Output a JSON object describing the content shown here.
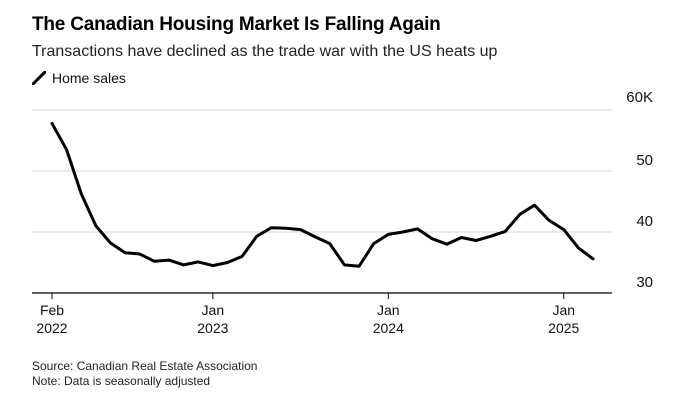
{
  "title": "The Canadian Housing Market Is Falling Again",
  "subtitle": "Transactions have declined as the trade war with the US heats up",
  "legend": {
    "label": "Home sales",
    "color": "#000000"
  },
  "source": "Source: Canadian Real Estate Association",
  "note": "Note: Data is seasonally adjusted",
  "chart_data": {
    "type": "line",
    "title": "The Canadian Housing Market Is Falling Again",
    "subtitle": "Transactions have declined as the trade war with the US heats up",
    "xlabel": "",
    "ylabel": "",
    "ylim": [
      30,
      60
    ],
    "grid": true,
    "legend": "top-left",
    "y_ticks": [
      {
        "value": 60,
        "label": "60K"
      },
      {
        "value": 50,
        "label": "50"
      },
      {
        "value": 40,
        "label": "40"
      },
      {
        "value": 30,
        "label": "30"
      }
    ],
    "x_ticks": [
      {
        "date": "2022-02",
        "line1": "Feb",
        "line2": "2022"
      },
      {
        "date": "2023-01",
        "line1": "Jan",
        "line2": "2023"
      },
      {
        "date": "2024-01",
        "line1": "Jan",
        "line2": "2024"
      },
      {
        "date": "2025-01",
        "line1": "Jan",
        "line2": "2025"
      }
    ],
    "x_range": [
      "2022-02",
      "2025-03"
    ],
    "series": [
      {
        "name": "Home sales",
        "color": "#000000",
        "x": [
          "2022-02",
          "2022-03",
          "2022-04",
          "2022-05",
          "2022-06",
          "2022-07",
          "2022-08",
          "2022-09",
          "2022-10",
          "2022-11",
          "2022-12",
          "2023-01",
          "2023-02",
          "2023-03",
          "2023-04",
          "2023-05",
          "2023-06",
          "2023-07",
          "2023-08",
          "2023-09",
          "2023-10",
          "2023-11",
          "2023-12",
          "2024-01",
          "2024-02",
          "2024-03",
          "2024-04",
          "2024-05",
          "2024-06",
          "2024-07",
          "2024-08",
          "2024-09",
          "2024-10",
          "2024-11",
          "2024-12",
          "2025-01",
          "2025-02",
          "2025-03"
        ],
        "values": [
          57.8,
          53.5,
          46.3,
          41.0,
          38.2,
          36.6,
          36.4,
          35.2,
          35.4,
          34.6,
          35.1,
          34.5,
          35.0,
          36.0,
          39.3,
          40.7,
          40.6,
          40.4,
          39.2,
          38.1,
          34.6,
          34.4,
          38.1,
          39.6,
          40.0,
          40.5,
          38.9,
          38.0,
          39.1,
          38.6,
          39.3,
          40.1,
          42.9,
          44.4,
          41.9,
          40.4,
          37.4,
          35.6
        ]
      }
    ]
  }
}
